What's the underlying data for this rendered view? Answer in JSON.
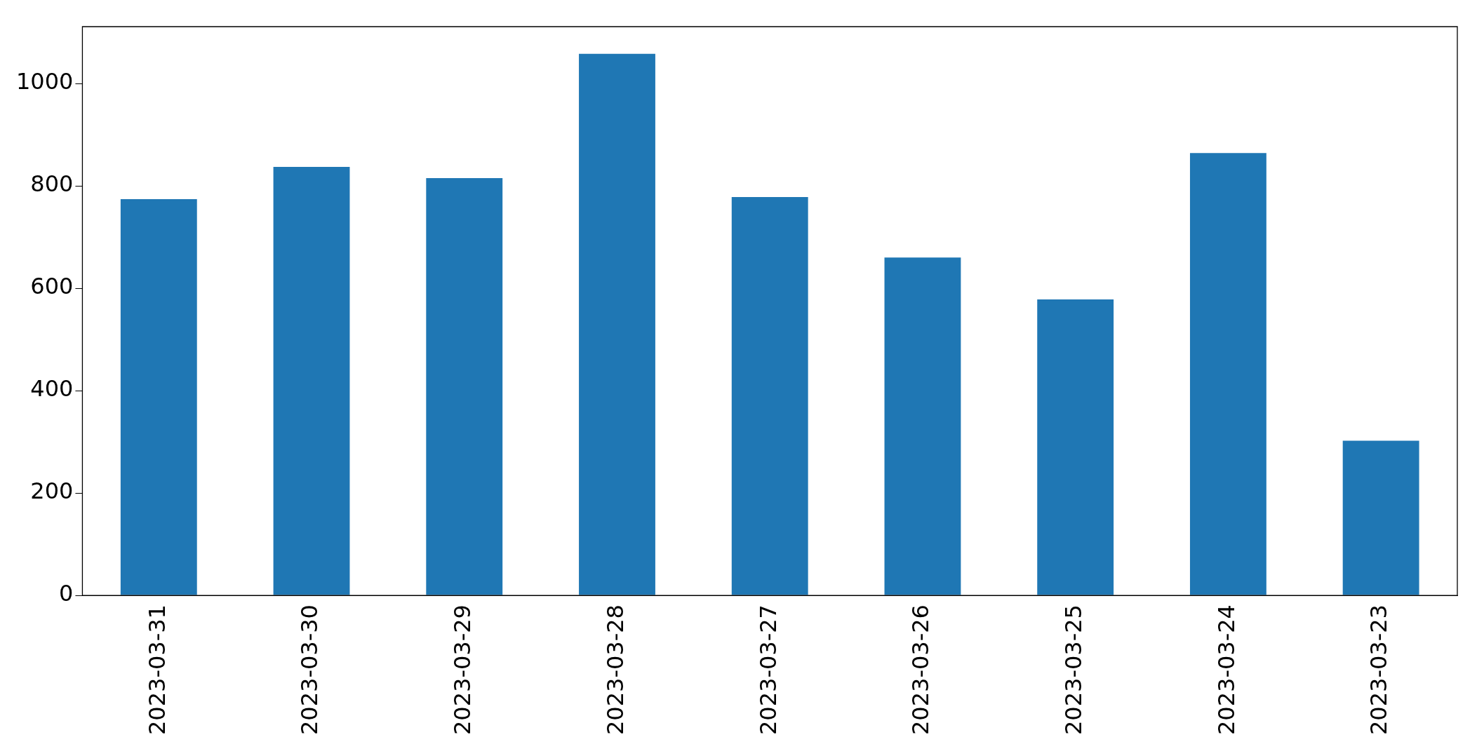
{
  "chart_data": {
    "type": "bar",
    "categories": [
      "2023-03-31",
      "2023-03-30",
      "2023-03-29",
      "2023-03-28",
      "2023-03-27",
      "2023-03-26",
      "2023-03-25",
      "2023-03-24",
      "2023-03-23"
    ],
    "values": [
      774,
      837,
      815,
      1058,
      778,
      660,
      578,
      864,
      302
    ],
    "color": "#1f77b4",
    "ylim": [
      0,
      1111
    ],
    "yticks": [
      0,
      200,
      400,
      600,
      800,
      1000
    ],
    "grid": false,
    "legend": false
  }
}
